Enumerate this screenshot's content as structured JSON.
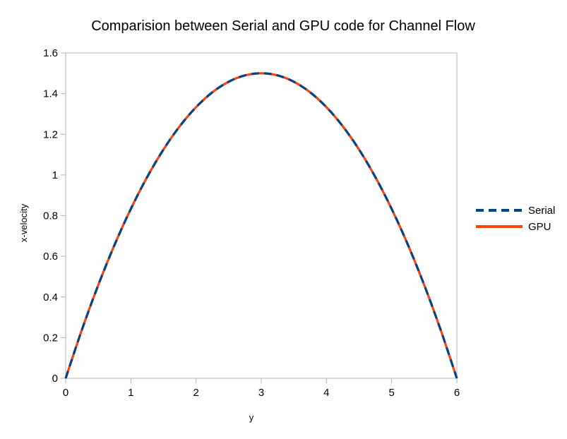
{
  "chart_data": {
    "type": "line",
    "title": "Comparision between Serial and GPU code for Channel Flow",
    "xlabel": "y",
    "ylabel": "x-velocity",
    "xlim": [
      0,
      6
    ],
    "ylim": [
      0,
      1.6
    ],
    "x_ticks": [
      "0",
      "1",
      "2",
      "3",
      "4",
      "5",
      "6"
    ],
    "y_ticks": [
      "0",
      "0.2",
      "0.4",
      "0.6",
      "0.8",
      "1",
      "1.2",
      "1.4",
      "1.6"
    ],
    "grid": false,
    "legend_position": "right",
    "series": [
      {
        "name": "Serial",
        "color": "#004586",
        "style": "dashed",
        "x": [
          0,
          0.25,
          0.5,
          0.75,
          1,
          1.25,
          1.5,
          1.75,
          2,
          2.25,
          2.5,
          2.75,
          3,
          3.25,
          3.5,
          3.75,
          4,
          4.25,
          4.5,
          4.75,
          5,
          5.25,
          5.5,
          5.75,
          6
        ],
        "values": [
          0,
          0.2396,
          0.4583,
          0.6563,
          0.8333,
          0.9896,
          1.125,
          1.2396,
          1.3333,
          1.4063,
          1.4583,
          1.4896,
          1.5,
          1.4896,
          1.4583,
          1.4063,
          1.3333,
          1.2396,
          1.125,
          0.9896,
          0.8333,
          0.6563,
          0.4583,
          0.2396,
          0
        ]
      },
      {
        "name": "GPU",
        "color": "#ff420e",
        "style": "solid",
        "x": [
          0,
          0.25,
          0.5,
          0.75,
          1,
          1.25,
          1.5,
          1.75,
          2,
          2.25,
          2.5,
          2.75,
          3,
          3.25,
          3.5,
          3.75,
          4,
          4.25,
          4.5,
          4.75,
          5,
          5.25,
          5.5,
          5.75,
          6
        ],
        "values": [
          0,
          0.2396,
          0.4583,
          0.6563,
          0.8333,
          0.9896,
          1.125,
          1.2396,
          1.3333,
          1.4063,
          1.4583,
          1.4896,
          1.5,
          1.4896,
          1.4583,
          1.4063,
          1.3333,
          1.2396,
          1.125,
          0.9896,
          0.8333,
          0.6563,
          0.4583,
          0.2396,
          0
        ]
      }
    ]
  }
}
